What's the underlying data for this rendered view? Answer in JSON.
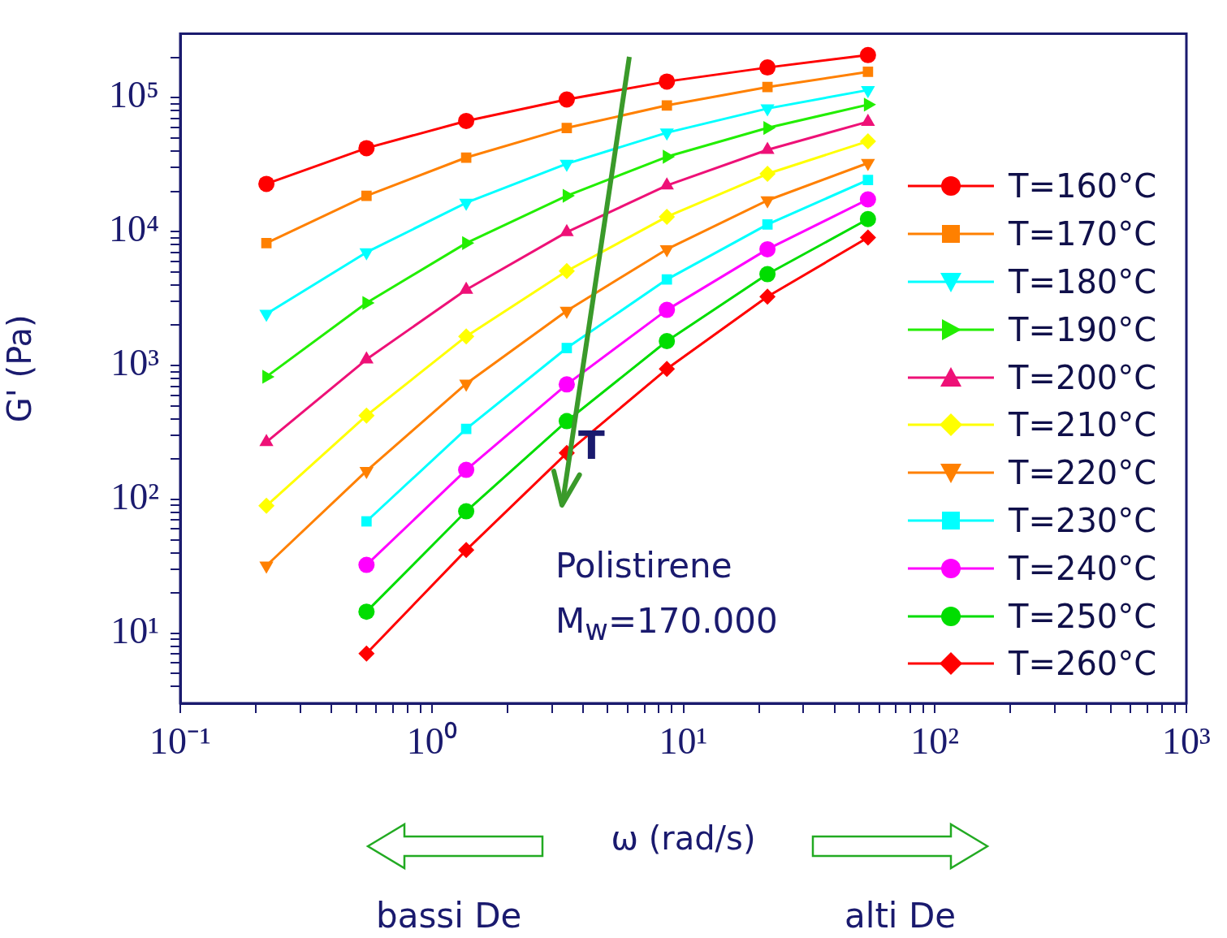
{
  "chart_data": {
    "type": "line",
    "xlabel": "ω (rad/s)",
    "ylabel": "G' (Pa)",
    "log": "xy",
    "grid": false,
    "legend": "right",
    "line_style": "solid",
    "xlim": [
      0.1,
      1000
    ],
    "ylim": [
      3,
      300000
    ],
    "xticks": [
      {
        "value": 0.1,
        "label": "10⁻¹"
      },
      {
        "value": 0.2,
        "label": null
      },
      {
        "value": 0.3,
        "label": null
      },
      {
        "value": 0.4,
        "label": null
      },
      {
        "value": 0.5,
        "label": null
      },
      {
        "value": 0.6,
        "label": null
      },
      {
        "value": 0.7,
        "label": null
      },
      {
        "value": 0.8,
        "label": null
      },
      {
        "value": 0.9,
        "label": null
      },
      {
        "value": 1,
        "label": "10⁰"
      },
      {
        "value": 2,
        "label": null
      },
      {
        "value": 3,
        "label": null
      },
      {
        "value": 4,
        "label": null
      },
      {
        "value": 5,
        "label": null
      },
      {
        "value": 6,
        "label": null
      },
      {
        "value": 7,
        "label": null
      },
      {
        "value": 8,
        "label": null
      },
      {
        "value": 9,
        "label": null
      },
      {
        "value": 10,
        "label": "10¹"
      },
      {
        "value": 20,
        "label": null
      },
      {
        "value": 30,
        "label": null
      },
      {
        "value": 40,
        "label": null
      },
      {
        "value": 50,
        "label": null
      },
      {
        "value": 60,
        "label": null
      },
      {
        "value": 70,
        "label": null
      },
      {
        "value": 80,
        "label": null
      },
      {
        "value": 90,
        "label": null
      },
      {
        "value": 100,
        "label": "10²"
      },
      {
        "value": 200,
        "label": null
      },
      {
        "value": 300,
        "label": null
      },
      {
        "value": 400,
        "label": null
      },
      {
        "value": 500,
        "label": null
      },
      {
        "value": 600,
        "label": null
      },
      {
        "value": 700,
        "label": null
      },
      {
        "value": 800,
        "label": null
      },
      {
        "value": 900,
        "label": null
      },
      {
        "value": 1000,
        "label": "10³"
      }
    ],
    "yticks": [
      {
        "value": 4,
        "label": null
      },
      {
        "value": 5,
        "label": null
      },
      {
        "value": 6,
        "label": null
      },
      {
        "value": 7,
        "label": null
      },
      {
        "value": 8,
        "label": null
      },
      {
        "value": 9,
        "label": null
      },
      {
        "value": 10,
        "label": "10¹"
      },
      {
        "value": 20,
        "label": null
      },
      {
        "value": 30,
        "label": null
      },
      {
        "value": 40,
        "label": null
      },
      {
        "value": 50,
        "label": null
      },
      {
        "value": 60,
        "label": null
      },
      {
        "value": 70,
        "label": null
      },
      {
        "value": 80,
        "label": null
      },
      {
        "value": 90,
        "label": null
      },
      {
        "value": 100,
        "label": "10²"
      },
      {
        "value": 200,
        "label": null
      },
      {
        "value": 300,
        "label": null
      },
      {
        "value": 400,
        "label": null
      },
      {
        "value": 500,
        "label": null
      },
      {
        "value": 600,
        "label": null
      },
      {
        "value": 700,
        "label": null
      },
      {
        "value": 800,
        "label": null
      },
      {
        "value": 900,
        "label": null
      },
      {
        "value": 1000,
        "label": "10³"
      },
      {
        "value": 2000,
        "label": null
      },
      {
        "value": 3000,
        "label": null
      },
      {
        "value": 4000,
        "label": null
      },
      {
        "value": 5000,
        "label": null
      },
      {
        "value": 6000,
        "label": null
      },
      {
        "value": 7000,
        "label": null
      },
      {
        "value": 8000,
        "label": null
      },
      {
        "value": 9000,
        "label": null
      },
      {
        "value": 10000,
        "label": "10⁴"
      },
      {
        "value": 20000,
        "label": null
      },
      {
        "value": 30000,
        "label": null
      },
      {
        "value": 40000,
        "label": null
      },
      {
        "value": 50000,
        "label": null
      },
      {
        "value": 60000,
        "label": null
      },
      {
        "value": 70000,
        "label": null
      },
      {
        "value": 80000,
        "label": null
      },
      {
        "value": 90000,
        "label": null
      },
      {
        "value": 100000,
        "label": "10⁵"
      },
      {
        "value": 200000,
        "label": null
      }
    ],
    "annotations": [
      "T",
      "Polistirene",
      "M$_{w}$=170.000",
      "bassi De",
      "alti De"
    ],
    "series": [
      {
        "name": "T=160°C",
        "color": "#ff0000",
        "marker": "circle",
        "x": [
          0.22,
          0.55,
          1.37,
          3.44,
          8.6,
          21.6,
          54.2
        ],
        "values": [
          22700,
          42000,
          67000,
          97000,
          132000,
          168000,
          208000
        ]
      },
      {
        "name": "T=170°C",
        "color": "#ff8000",
        "marker": "square",
        "x": [
          0.22,
          0.55,
          1.37,
          3.44,
          8.6,
          21.6,
          54.2
        ],
        "values": [
          8200,
          18500,
          35700,
          59400,
          87500,
          120000,
          156000
        ]
      },
      {
        "name": "T=180°C",
        "color": "#00ffff",
        "marker": "triangle-down",
        "x": [
          0.22,
          0.55,
          1.37,
          3.44,
          8.6,
          21.6,
          54.2
        ],
        "values": [
          2430,
          7000,
          16400,
          32100,
          54800,
          83000,
          114000
        ]
      },
      {
        "name": "T=190°C",
        "color": "#22ee00",
        "marker": "triangle-right",
        "x": [
          0.22,
          0.55,
          1.37,
          3.44,
          8.6,
          21.6,
          54.2
        ],
        "values": [
          824,
          2930,
          8200,
          18500,
          36200,
          59400,
          88700
        ]
      },
      {
        "name": "T=200°C",
        "color": "#ee1177",
        "marker": "triangle",
        "x": [
          0.22,
          0.55,
          1.37,
          3.44,
          8.6,
          21.6,
          54.2
        ],
        "values": [
          268,
          1110,
          3680,
          9900,
          22100,
          40800,
          66100
        ]
      },
      {
        "name": "T=210°C",
        "color": "#ffff00",
        "marker": "diamond",
        "x": [
          0.22,
          0.55,
          1.37,
          3.44,
          8.6,
          21.6,
          54.2
        ],
        "values": [
          89.5,
          423,
          1650,
          5070,
          12900,
          27000,
          47300
        ]
      },
      {
        "name": "T=220°C",
        "color": "#ff8000",
        "marker": "triangle-down",
        "x": [
          0.22,
          0.55,
          1.37,
          3.44,
          8.6,
          21.6,
          54.2
        ],
        "values": [
          32,
          163,
          731,
          2560,
          7380,
          17100,
          32500
        ]
      },
      {
        "name": "T=230°C",
        "color": "#00ffff",
        "marker": "square",
        "x": [
          0.55,
          1.37,
          3.44,
          8.6,
          21.6,
          54.2
        ],
        "values": [
          68.5,
          336,
          1350,
          4390,
          11300,
          24300
        ]
      },
      {
        "name": "T=240°C",
        "color": "#ff00ff",
        "marker": "circle",
        "x": [
          0.55,
          1.37,
          3.44,
          8.6,
          21.6,
          54.2
        ],
        "values": [
          32.4,
          166,
          722,
          2600,
          7380,
          17400
        ]
      },
      {
        "name": "T=250°C",
        "color": "#00dd00",
        "marker": "circle",
        "x": [
          0.55,
          1.37,
          3.44,
          8.6,
          21.6,
          54.2
        ],
        "values": [
          14.5,
          81.5,
          384,
          1520,
          4810,
          12400
        ]
      },
      {
        "name": "T=260°C",
        "color": "#ff0000",
        "marker": "diamond",
        "x": [
          0.55,
          1.37,
          3.44,
          8.6,
          21.6,
          54.2
        ],
        "values": [
          7.06,
          41.8,
          222,
          942,
          3270,
          9020
        ]
      }
    ]
  }
}
